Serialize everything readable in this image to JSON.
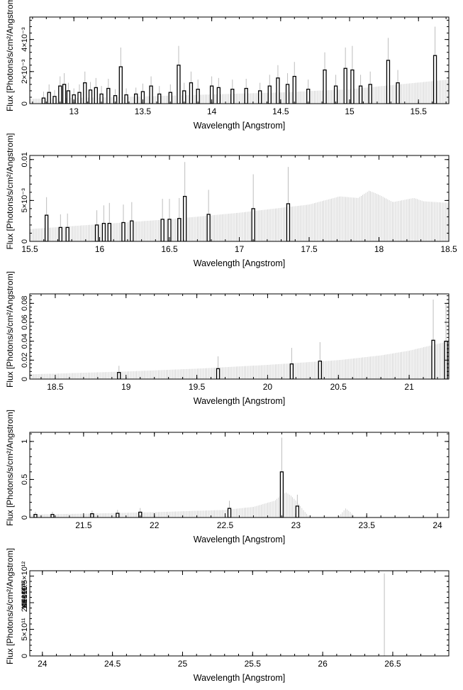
{
  "chart_data": [
    {
      "type": "bar",
      "xlabel": "Wavelength [Angstrom]",
      "ylabel": "Flux [Photons/s/cm²/Angstrom]",
      "xlim": [
        12.68,
        15.72
      ],
      "ylim": [
        0,
        0.0054
      ],
      "xticks": [
        {
          "v": 13,
          "label": "13"
        },
        {
          "v": 13.5,
          "label": "13.5"
        },
        {
          "v": 14,
          "label": "14"
        },
        {
          "v": 14.5,
          "label": "14.5"
        },
        {
          "v": 15,
          "label": "15"
        },
        {
          "v": 15.5,
          "label": "15.5"
        }
      ],
      "yticks": [
        {
          "v": 0,
          "label": "0"
        },
        {
          "v": 0.002,
          "label": "2×10⁻³"
        },
        {
          "v": 0.004,
          "label": "4×10⁻³"
        }
      ],
      "model": {
        "x": [
          12.68,
          13.5,
          14.5,
          15.0,
          15.72
        ],
        "y": [
          0.0003,
          0.00045,
          0.0007,
          0.0009,
          0.0015
        ]
      },
      "model_peak": 0.0015,
      "data_points": [
        {
          "x": 12.78,
          "y": 0.00035,
          "err": 0.0004
        },
        {
          "x": 12.82,
          "y": 0.0007,
          "err": 0.0005
        },
        {
          "x": 12.86,
          "y": 0.00045,
          "err": 0.0004
        },
        {
          "x": 12.9,
          "y": 0.0011,
          "err": 0.0006
        },
        {
          "x": 12.93,
          "y": 0.0012,
          "err": 0.0007
        },
        {
          "x": 12.96,
          "y": 0.0008,
          "err": 0.0005
        },
        {
          "x": 13.0,
          "y": 0.00055,
          "err": 0.0004
        },
        {
          "x": 13.04,
          "y": 0.0007,
          "err": 0.0005
        },
        {
          "x": 13.08,
          "y": 0.0013,
          "err": 0.0007
        },
        {
          "x": 13.12,
          "y": 0.00085,
          "err": 0.0005
        },
        {
          "x": 13.16,
          "y": 0.001,
          "err": 0.0006
        },
        {
          "x": 13.2,
          "y": 0.0006,
          "err": 0.0005
        },
        {
          "x": 13.25,
          "y": 0.00095,
          "err": 0.0006
        },
        {
          "x": 13.3,
          "y": 0.0005,
          "err": 0.0004
        },
        {
          "x": 13.34,
          "y": 0.0023,
          "err": 0.0012
        },
        {
          "x": 13.38,
          "y": 0.00055,
          "err": 0.0004
        },
        {
          "x": 13.45,
          "y": 0.0006,
          "err": 0.0004
        },
        {
          "x": 13.5,
          "y": 0.00075,
          "err": 0.0005
        },
        {
          "x": 13.56,
          "y": 0.0011,
          "err": 0.0006
        },
        {
          "x": 13.62,
          "y": 0.0006,
          "err": 0.0005
        },
        {
          "x": 13.7,
          "y": 0.0007,
          "err": 0.0005
        },
        {
          "x": 13.76,
          "y": 0.0024,
          "err": 0.0012
        },
        {
          "x": 13.8,
          "y": 0.0008,
          "err": 0.0005
        },
        {
          "x": 13.85,
          "y": 0.0013,
          "err": 0.0007
        },
        {
          "x": 13.9,
          "y": 0.0009,
          "err": 0.0006
        },
        {
          "x": 14.0,
          "y": 0.0011,
          "err": 0.0006
        },
        {
          "x": 14.05,
          "y": 0.001,
          "err": 0.0006
        },
        {
          "x": 14.15,
          "y": 0.0009,
          "err": 0.0006
        },
        {
          "x": 14.25,
          "y": 0.00095,
          "err": 0.0006
        },
        {
          "x": 14.35,
          "y": 0.0008,
          "err": 0.0005
        },
        {
          "x": 14.42,
          "y": 0.0011,
          "err": 0.0007
        },
        {
          "x": 14.48,
          "y": 0.0016,
          "err": 0.0008
        },
        {
          "x": 14.55,
          "y": 0.0012,
          "err": 0.0007
        },
        {
          "x": 14.6,
          "y": 0.0017,
          "err": 0.0009
        },
        {
          "x": 14.7,
          "y": 0.0009,
          "err": 0.0006
        },
        {
          "x": 14.82,
          "y": 0.0021,
          "err": 0.0011
        },
        {
          "x": 14.9,
          "y": 0.0011,
          "err": 0.0007
        },
        {
          "x": 14.97,
          "y": 0.0022,
          "err": 0.0013
        },
        {
          "x": 15.02,
          "y": 0.0021,
          "err": 0.0015
        },
        {
          "x": 15.08,
          "y": 0.0011,
          "err": 0.0007
        },
        {
          "x": 15.15,
          "y": 0.0012,
          "err": 0.0008
        },
        {
          "x": 15.28,
          "y": 0.0027,
          "err": 0.0014
        },
        {
          "x": 15.35,
          "y": 0.0013,
          "err": 0.0008
        },
        {
          "x": 15.62,
          "y": 0.003,
          "err": 0.0018
        }
      ]
    },
    {
      "type": "bar",
      "xlabel": "Wavelength [Angstrom]",
      "ylabel": "Flux [Photons/s/cm²/Angstrom]",
      "xlim": [
        15.5,
        18.5
      ],
      "ylim": [
        0,
        0.0105
      ],
      "xticks": [
        {
          "v": 15.5,
          "label": "15.5"
        },
        {
          "v": 16,
          "label": "16"
        },
        {
          "v": 16.5,
          "label": "16.5"
        },
        {
          "v": 17,
          "label": "17"
        },
        {
          "v": 17.5,
          "label": "17.5"
        },
        {
          "v": 18,
          "label": "18"
        },
        {
          "v": 18.5,
          "label": "18.5"
        }
      ],
      "yticks": [
        {
          "v": 0,
          "label": "0"
        },
        {
          "v": 0.005,
          "label": "5×10⁻³"
        },
        {
          "v": 0.01,
          "label": "0.01"
        }
      ],
      "model": {
        "x": [
          15.5,
          16.5,
          17.0,
          17.5,
          17.72,
          17.85,
          17.93,
          18.0,
          18.1,
          18.25,
          18.32,
          18.5
        ],
        "y": [
          0.0015,
          0.0027,
          0.0035,
          0.0045,
          0.0055,
          0.0053,
          0.0062,
          0.0057,
          0.0048,
          0.0053,
          0.0049,
          0.0047
        ]
      },
      "model_peak": 0.0062,
      "data_points": [
        {
          "x": 15.62,
          "y": 0.0032,
          "err": 0.0022
        },
        {
          "x": 15.72,
          "y": 0.0017,
          "err": 0.0016
        },
        {
          "x": 15.77,
          "y": 0.0017,
          "err": 0.0017
        },
        {
          "x": 15.98,
          "y": 0.002,
          "err": 0.0018
        },
        {
          "x": 16.03,
          "y": 0.0022,
          "err": 0.0022
        },
        {
          "x": 16.07,
          "y": 0.0022,
          "err": 0.0025
        },
        {
          "x": 16.17,
          "y": 0.0023,
          "err": 0.0022
        },
        {
          "x": 16.23,
          "y": 0.0025,
          "err": 0.0023
        },
        {
          "x": 16.45,
          "y": 0.0027,
          "err": 0.0025
        },
        {
          "x": 16.5,
          "y": 0.0027,
          "err": 0.0025
        },
        {
          "x": 16.57,
          "y": 0.0028,
          "err": 0.0025
        },
        {
          "x": 16.61,
          "y": 0.0055,
          "err": 0.0042
        },
        {
          "x": 16.78,
          "y": 0.0033,
          "err": 0.003
        },
        {
          "x": 17.1,
          "y": 0.004,
          "err": 0.0042
        },
        {
          "x": 17.35,
          "y": 0.0046,
          "err": 0.0045
        }
      ]
    },
    {
      "type": "bar",
      "xlabel": "Wavelength [Angstrom]",
      "ylabel": "Flux [Photons/s/cm²/Angstrom]",
      "xlim": [
        18.32,
        21.28
      ],
      "ylim": [
        0,
        0.09
      ],
      "xticks": [
        {
          "v": 18.5,
          "label": "18.5"
        },
        {
          "v": 19,
          "label": "19"
        },
        {
          "v": 19.5,
          "label": "19.5"
        },
        {
          "v": 20,
          "label": "20"
        },
        {
          "v": 20.5,
          "label": "20.5"
        },
        {
          "v": 21,
          "label": "21"
        }
      ],
      "yticks": [
        {
          "v": 0,
          "label": "0"
        },
        {
          "v": 0.02,
          "label": "0.02"
        },
        {
          "v": 0.04,
          "label": "0.04"
        },
        {
          "v": 0.06,
          "label": "0.06"
        },
        {
          "v": 0.08,
          "label": "0.08"
        }
      ],
      "model": {
        "x": [
          18.32,
          19.0,
          19.5,
          20.0,
          20.5,
          20.8,
          21.0,
          21.28
        ],
        "y": [
          0.005,
          0.008,
          0.011,
          0.015,
          0.02,
          0.025,
          0.03,
          0.04
        ]
      },
      "model_peak": 0.04,
      "data_points": [
        {
          "x": 18.95,
          "y": 0.007,
          "err": 0.007
        },
        {
          "x": 19.65,
          "y": 0.011,
          "err": 0.013
        },
        {
          "x": 20.17,
          "y": 0.016,
          "err": 0.017
        },
        {
          "x": 20.37,
          "y": 0.019,
          "err": 0.02
        },
        {
          "x": 21.17,
          "y": 0.041,
          "err": 0.043
        },
        {
          "x": 21.26,
          "y": 0.04,
          "err": 0.04
        }
      ]
    },
    {
      "type": "bar",
      "xlabel": "Wavelength [Angstrom]",
      "ylabel": "Flux [Photons/s/cm²/Angstrom]",
      "xlim": [
        21.12,
        24.08
      ],
      "ylim": [
        0,
        1.12
      ],
      "xticks": [
        {
          "v": 21.5,
          "label": "21.5"
        },
        {
          "v": 22,
          "label": "22"
        },
        {
          "v": 22.5,
          "label": "22.5"
        },
        {
          "v": 23,
          "label": "23"
        },
        {
          "v": 23.5,
          "label": "23.5"
        },
        {
          "v": 24,
          "label": "24"
        }
      ],
      "yticks": [
        {
          "v": 0,
          "label": "0"
        },
        {
          "v": 0.5,
          "label": "0.5"
        },
        {
          "v": 1,
          "label": "1"
        }
      ],
      "model": {
        "x": [
          21.12,
          21.5,
          22.0,
          22.5,
          22.7,
          22.85,
          22.9,
          22.93,
          22.97,
          23.02,
          23.06,
          23.1,
          23.3,
          23.35,
          23.38,
          23.42
        ],
        "y": [
          0.04,
          0.05,
          0.07,
          0.1,
          0.14,
          0.22,
          0.3,
          0.33,
          0.28,
          0.18,
          0.08,
          0.0,
          0.0,
          0.12,
          0.08,
          0.0
        ]
      },
      "model_peak": 0.33,
      "data_points": [
        {
          "x": 21.16,
          "y": 0.04,
          "err": 0.035
        },
        {
          "x": 21.28,
          "y": 0.04,
          "err": 0.035
        },
        {
          "x": 21.56,
          "y": 0.05,
          "err": 0.04
        },
        {
          "x": 21.74,
          "y": 0.055,
          "err": 0.045
        },
        {
          "x": 21.9,
          "y": 0.07,
          "err": 0.055
        },
        {
          "x": 22.53,
          "y": 0.12,
          "err": 0.1
        },
        {
          "x": 22.9,
          "y": 0.6,
          "err": 0.45
        },
        {
          "x": 23.01,
          "y": 0.15,
          "err": 0.15
        }
      ]
    },
    {
      "type": "bar",
      "xlabel": "Wavelength [Angstrom]",
      "ylabel": "Flux [Photons/s/cm²/Angstrom]",
      "xlim": [
        23.91,
        26.9
      ],
      "ylim": [
        0,
        1600000000000.0
      ],
      "xticks": [
        {
          "v": 24,
          "label": "24"
        },
        {
          "v": 24.5,
          "label": "24.5"
        },
        {
          "v": 25,
          "label": "25"
        },
        {
          "v": 25.5,
          "label": "25.5"
        },
        {
          "v": 26,
          "label": "26"
        },
        {
          "v": 26.5,
          "label": "26.5"
        }
      ],
      "yticks": [
        {
          "v": 0,
          "label": "0"
        },
        {
          "v": 500000000000.0,
          "label": "5×10¹¹"
        },
        {
          "v": 1000000000000.0,
          "label": "10¹²"
        },
        {
          "v": 1500000000000.0,
          "label": "1.5×10¹²"
        }
      ],
      "ytick_labels_overlap": [
        "0",
        "2×10¹²",
        "4×10¹²",
        "6×10¹²",
        "10¹²"
      ],
      "model": {
        "x": [],
        "y": []
      },
      "model_peak": 0,
      "data_points": [
        {
          "x": 26.44,
          "y": 0.0,
          "err": 1550000000000.0
        }
      ]
    }
  ]
}
